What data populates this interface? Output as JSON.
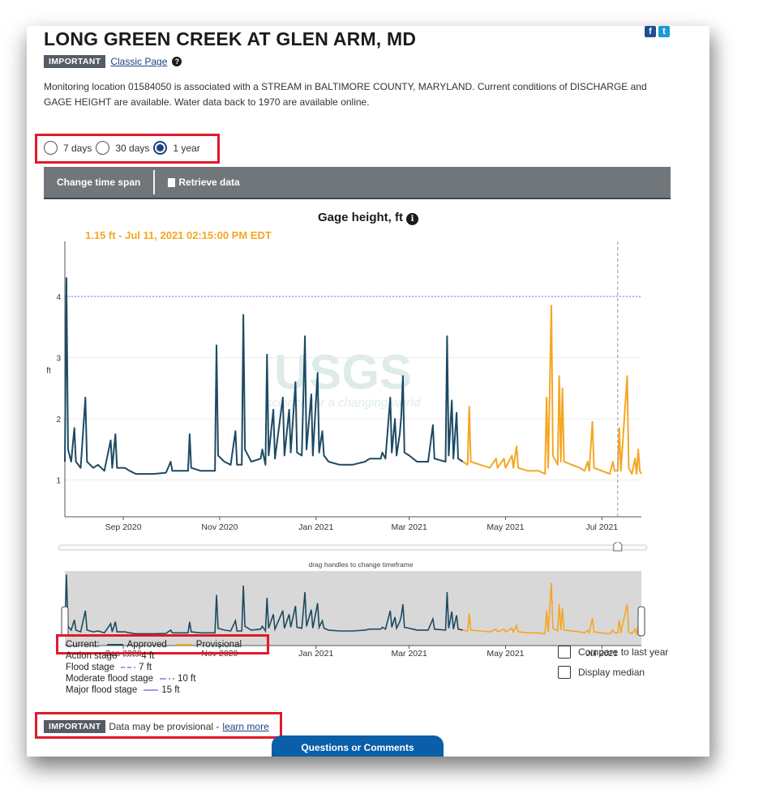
{
  "header": {
    "title": "LONG GREEN CREEK AT GLEN ARM, MD",
    "badge": "IMPORTANT",
    "classic_link": "Classic Page",
    "help_icon": "question-icon",
    "description": "Monitoring location 01584050 is associated with a STREAM in BALTIMORE COUNTY, MARYLAND. Current conditions of DISCHARGE and GAGE HEIGHT are available. Water data back to 1970 are available online.",
    "social": {
      "facebook": "f",
      "twitter": "t"
    }
  },
  "time_span": {
    "options": [
      "7 days",
      "30 days",
      "1 year"
    ],
    "selected": "1 year"
  },
  "toolbar": {
    "change_time_span": "Change time span",
    "retrieve_data": "Retrieve data"
  },
  "chart_data": {
    "type": "line",
    "title": "Gage height, ft",
    "tooltip": "1.15 ft - Jul 11, 2021 02:15:00 PM EDT",
    "ylabel": "ft",
    "y_ticks": [
      "1",
      "2",
      "3",
      "4"
    ],
    "ylim": [
      0.4,
      4.9
    ],
    "x_ticks": [
      "Sep 2020",
      "Nov 2020",
      "Jan 2021",
      "Mar 2021",
      "May 2021",
      "Jul 2021"
    ],
    "xlim": [
      "2020-07-26",
      "2021-07-26"
    ],
    "action_stage_line": 4,
    "cursor_date": "2021-07-11",
    "watermark": {
      "brand": "USGS",
      "tagline": "science for a changing world"
    },
    "series": [
      {
        "name": "Approved",
        "color": "#1d4a63",
        "points": [
          [
            "2020-07-26",
            1.3
          ],
          [
            "2020-07-27",
            4.3
          ],
          [
            "2020-07-28",
            1.5
          ],
          [
            "2020-07-30",
            1.3
          ],
          [
            "2020-08-01",
            1.85
          ],
          [
            "2020-08-02",
            1.3
          ],
          [
            "2020-08-05",
            1.2
          ],
          [
            "2020-08-08",
            2.35
          ],
          [
            "2020-08-09",
            1.3
          ],
          [
            "2020-08-13",
            1.2
          ],
          [
            "2020-08-16",
            1.25
          ],
          [
            "2020-08-20",
            1.15
          ],
          [
            "2020-08-24",
            1.65
          ],
          [
            "2020-08-25",
            1.2
          ],
          [
            "2020-08-27",
            1.75
          ],
          [
            "2020-08-28",
            1.2
          ],
          [
            "2020-09-02",
            1.2
          ],
          [
            "2020-09-05",
            1.15
          ],
          [
            "2020-09-09",
            1.1
          ],
          [
            "2020-09-15",
            1.1
          ],
          [
            "2020-09-20",
            1.1
          ],
          [
            "2020-09-28",
            1.12
          ],
          [
            "2020-10-01",
            1.3
          ],
          [
            "2020-10-02",
            1.15
          ],
          [
            "2020-10-05",
            1.15
          ],
          [
            "2020-10-12",
            1.15
          ],
          [
            "2020-10-13",
            1.75
          ],
          [
            "2020-10-14",
            1.2
          ],
          [
            "2020-10-20",
            1.15
          ],
          [
            "2020-10-29",
            1.15
          ],
          [
            "2020-10-30",
            3.2
          ],
          [
            "2020-10-31",
            1.4
          ],
          [
            "2020-11-04",
            1.3
          ],
          [
            "2020-11-08",
            1.25
          ],
          [
            "2020-11-11",
            1.8
          ],
          [
            "2020-11-12",
            1.25
          ],
          [
            "2020-11-15",
            1.25
          ],
          [
            "2020-11-16",
            3.7
          ],
          [
            "2020-11-17",
            1.5
          ],
          [
            "2020-11-21",
            1.3
          ],
          [
            "2020-11-27",
            1.35
          ],
          [
            "2020-11-28",
            1.5
          ],
          [
            "2020-11-30",
            1.25
          ],
          [
            "2020-12-01",
            3.05
          ],
          [
            "2020-12-02",
            1.4
          ],
          [
            "2020-12-05",
            2.15
          ],
          [
            "2020-12-06",
            1.35
          ],
          [
            "2020-12-11",
            2.35
          ],
          [
            "2020-12-12",
            1.4
          ],
          [
            "2020-12-15",
            2.15
          ],
          [
            "2020-12-16",
            1.45
          ],
          [
            "2020-12-19",
            2.6
          ],
          [
            "2020-12-20",
            1.45
          ],
          [
            "2020-12-23",
            1.4
          ],
          [
            "2020-12-25",
            3.35
          ],
          [
            "2020-12-26",
            1.5
          ],
          [
            "2020-12-29",
            2.4
          ],
          [
            "2020-12-30",
            1.4
          ],
          [
            "2021-01-02",
            2.75
          ],
          [
            "2021-01-03",
            1.45
          ],
          [
            "2021-01-05",
            1.8
          ],
          [
            "2021-01-06",
            1.4
          ],
          [
            "2021-01-09",
            1.3
          ],
          [
            "2021-01-16",
            1.25
          ],
          [
            "2021-01-24",
            1.25
          ],
          [
            "2021-02-01",
            1.3
          ],
          [
            "2021-02-04",
            1.35
          ],
          [
            "2021-02-11",
            1.35
          ],
          [
            "2021-02-12",
            1.45
          ],
          [
            "2021-02-14",
            1.35
          ],
          [
            "2021-02-17",
            2.35
          ],
          [
            "2021-02-18",
            1.45
          ],
          [
            "2021-02-20",
            2.0
          ],
          [
            "2021-02-21",
            1.4
          ],
          [
            "2021-02-23",
            1.75
          ],
          [
            "2021-02-24",
            2.05
          ],
          [
            "2021-02-25",
            2.7
          ],
          [
            "2021-02-26",
            1.45
          ],
          [
            "2021-03-01",
            1.4
          ],
          [
            "2021-03-06",
            1.3
          ],
          [
            "2021-03-13",
            1.3
          ],
          [
            "2021-03-16",
            1.9
          ],
          [
            "2021-03-17",
            1.35
          ],
          [
            "2021-03-24",
            1.3
          ],
          [
            "2021-03-25",
            3.35
          ],
          [
            "2021-03-26",
            1.4
          ],
          [
            "2021-03-28",
            2.3
          ],
          [
            "2021-03-29",
            1.35
          ],
          [
            "2021-03-31",
            2.1
          ],
          [
            "2021-04-01",
            1.35
          ],
          [
            "2021-04-04",
            1.3
          ]
        ]
      },
      {
        "name": "Provisional",
        "color": "#f5a623",
        "points": [
          [
            "2021-04-04",
            1.3
          ],
          [
            "2021-04-07",
            1.25
          ],
          [
            "2021-04-08",
            2.2
          ],
          [
            "2021-04-09",
            1.3
          ],
          [
            "2021-04-15",
            1.25
          ],
          [
            "2021-04-21",
            1.2
          ],
          [
            "2021-04-25",
            1.35
          ],
          [
            "2021-04-26",
            1.2
          ],
          [
            "2021-04-30",
            1.35
          ],
          [
            "2021-05-01",
            1.2
          ],
          [
            "2021-05-05",
            1.4
          ],
          [
            "2021-05-06",
            1.2
          ],
          [
            "2021-05-08",
            1.55
          ],
          [
            "2021-05-09",
            1.2
          ],
          [
            "2021-05-15",
            1.15
          ],
          [
            "2021-05-22",
            1.15
          ],
          [
            "2021-05-26",
            1.1
          ],
          [
            "2021-05-27",
            2.35
          ],
          [
            "2021-05-28",
            1.2
          ],
          [
            "2021-05-30",
            3.85
          ],
          [
            "2021-05-31",
            1.4
          ],
          [
            "2021-06-03",
            1.25
          ],
          [
            "2021-06-04",
            2.7
          ],
          [
            "2021-06-05",
            1.3
          ],
          [
            "2021-06-06",
            2.5
          ],
          [
            "2021-06-07",
            1.3
          ],
          [
            "2021-06-12",
            1.25
          ],
          [
            "2021-06-17",
            1.2
          ],
          [
            "2021-06-20",
            1.15
          ],
          [
            "2021-06-22",
            1.3
          ],
          [
            "2021-06-23",
            1.15
          ],
          [
            "2021-06-25",
            1.95
          ],
          [
            "2021-06-26",
            1.2
          ],
          [
            "2021-07-01",
            1.15
          ],
          [
            "2021-07-06",
            1.1
          ],
          [
            "2021-07-08",
            1.3
          ],
          [
            "2021-07-09",
            1.15
          ],
          [
            "2021-07-11",
            1.15
          ],
          [
            "2021-07-12",
            1.85
          ],
          [
            "2021-07-13",
            1.15
          ],
          [
            "2021-07-17",
            2.7
          ],
          [
            "2021-07-18",
            1.2
          ],
          [
            "2021-07-20",
            1.1
          ],
          [
            "2021-07-22",
            1.35
          ],
          [
            "2021-07-23",
            1.1
          ],
          [
            "2021-07-24",
            1.5
          ],
          [
            "2021-07-25",
            1.15
          ],
          [
            "2021-07-26",
            1.1
          ]
        ]
      }
    ]
  },
  "brush": {
    "hint": "drag handles to change timeframe"
  },
  "legend": {
    "current_label": "Current:",
    "approved": "Approved",
    "provisional": "Provisional",
    "stages": [
      {
        "name": "Action stage",
        "value": "4 ft",
        "dash": "2,2"
      },
      {
        "name": "Flood stage",
        "value": "7 ft",
        "dash": "5,3"
      },
      {
        "name": "Moderate flood stage",
        "value": "10 ft",
        "dash": "8,3,2,3"
      },
      {
        "name": "Major flood stage",
        "value": "15 ft",
        "dash": ""
      }
    ]
  },
  "options": {
    "compare_last_year": "Compare to last year",
    "display_median": "Display median"
  },
  "footer": {
    "badge": "IMPORTANT",
    "note": "Data may be provisional -",
    "learn_more": "learn more",
    "questions_button": "Questions or Comments"
  }
}
